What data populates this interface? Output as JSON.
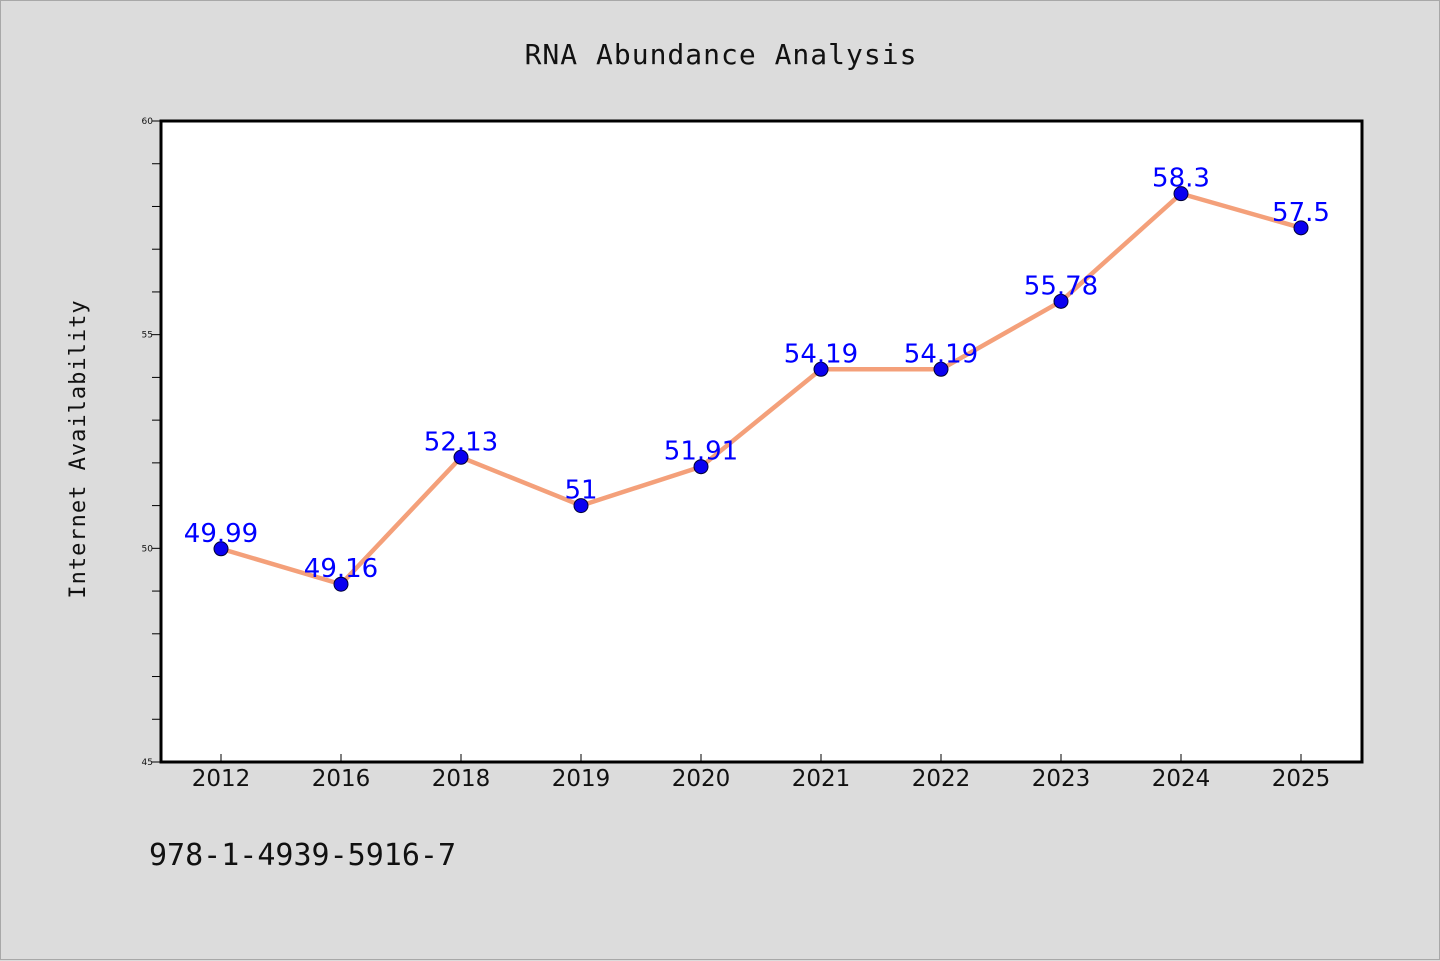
{
  "chart_data": {
    "type": "line",
    "title": "RNA Abundance Analysis",
    "xlabel": "",
    "ylabel": "Internet Availability",
    "categories": [
      "2012",
      "2016",
      "2018",
      "2019",
      "2020",
      "2021",
      "2022",
      "2023",
      "2024",
      "2025"
    ],
    "series": [
      {
        "values": [
          49.99,
          49.16,
          52.13,
          51,
          51.91,
          54.19,
          54.19,
          55.78,
          58.3,
          57.5
        ]
      }
    ],
    "data_labels": [
      "49.99",
      "49.16",
      "52.13",
      "51",
      "51.91",
      "54.19",
      "54.19",
      "55.78",
      "58.3",
      "57.5"
    ],
    "ylim": [
      45,
      60
    ],
    "yticks": [
      "45",
      "50",
      "55",
      "60"
    ],
    "yminor_step": 1,
    "grid": false,
    "legend": "none",
    "colors": {
      "line": "#f4a07a",
      "marker": "#0a00f0",
      "label": "#0000ff",
      "plot_bg": "#ffffff",
      "page_bg": "#dcdcdc"
    }
  },
  "footer": {
    "isbn": "978-1-4939-5916-7"
  }
}
